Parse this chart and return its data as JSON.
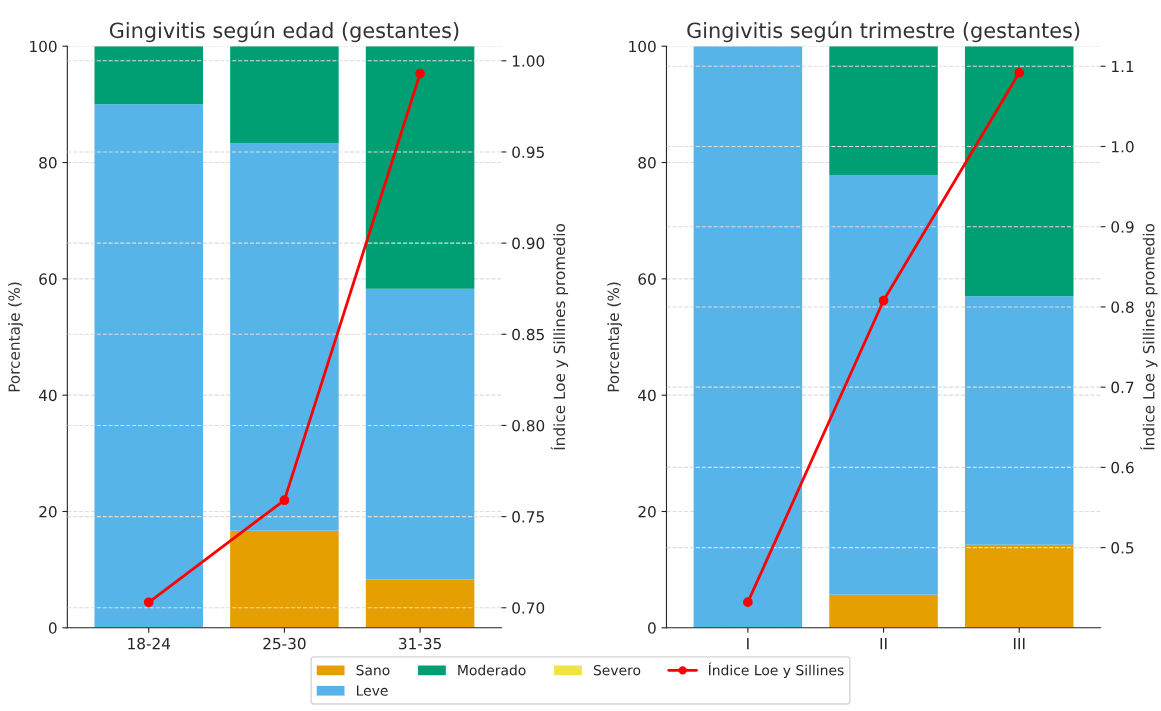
{
  "chart_data": [
    {
      "type": "bar",
      "title": "Gingivitis según edad (gestantes)",
      "ylabel": "Porcentaje (%)",
      "y2label": "Índice Loe y Sillines promedio",
      "categories": [
        "18-24",
        "25-30",
        "31-35"
      ],
      "stacked": true,
      "series": [
        {
          "name": "Sano",
          "color": "#e69f00",
          "values": [
            0,
            16.7,
            8.3
          ]
        },
        {
          "name": "Leve",
          "color": "#56b4e9",
          "values": [
            90,
            66.6,
            50
          ]
        },
        {
          "name": "Moderado",
          "color": "#009e73",
          "values": [
            10,
            16.7,
            41.7
          ]
        },
        {
          "name": "Severo",
          "color": "#f0e442",
          "values": [
            0,
            0,
            0
          ]
        },
        {
          "name": "Índice Loe y Sillines",
          "type": "line",
          "axis": "y2",
          "color": "#ff0000",
          "values": [
            0.703,
            0.759,
            0.993
          ]
        }
      ],
      "ylim": [
        0,
        100
      ],
      "yticks": [
        0,
        20,
        40,
        60,
        80,
        100
      ],
      "y2lim": [
        0.689,
        1.008
      ],
      "y2ticks": [
        {
          "value": 0.7,
          "label": "0.70"
        },
        {
          "value": 0.75,
          "label": "0.75"
        },
        {
          "value": 0.8,
          "label": "0.80"
        },
        {
          "value": 0.85,
          "label": "0.85"
        },
        {
          "value": 0.9,
          "label": "0.90"
        },
        {
          "value": 0.95,
          "label": "0.95"
        },
        {
          "value": 1.0,
          "label": "1.00"
        }
      ],
      "grid": true,
      "legend": "bottom",
      "marker": "circle",
      "line_style": "solid"
    },
    {
      "type": "bar",
      "title": "Gingivitis según trimestre (gestantes)",
      "ylabel": "Porcentaje (%)",
      "y2label": "Índice Loe y Sillines promedio",
      "categories": [
        "I",
        "II",
        "III"
      ],
      "stacked": true,
      "series": [
        {
          "color": "#e69f00",
          "values": [
            0,
            5.7,
            14.3
          ]
        },
        {
          "color": "#56b4e9",
          "values": [
            100,
            72.1,
            42.7
          ]
        },
        {
          "color": "#009e73",
          "values": [
            0,
            22.2,
            43.0
          ]
        },
        {
          "color": "#f0e442",
          "values": [
            0,
            0,
            0
          ]
        },
        {
          "type": "line",
          "axis": "y2",
          "color": "#ff0000",
          "values": [
            0.432,
            0.808,
            1.092
          ]
        }
      ],
      "ylim": [
        0,
        100
      ],
      "yticks": [
        0,
        20,
        40,
        60,
        80,
        100
      ],
      "y2lim": [
        0.4,
        1.125
      ],
      "y2ticks": [
        {
          "value": 0.5,
          "label": "0.5"
        },
        {
          "value": 0.6,
          "label": "0.6"
        },
        {
          "value": 0.7,
          "label": "0.7"
        },
        {
          "value": 0.8,
          "label": "0.8"
        },
        {
          "value": 0.9,
          "label": "0.9"
        },
        {
          "value": 1.0,
          "label": "1.0"
        },
        {
          "value": 1.1,
          "label": "1.1"
        }
      ],
      "grid": true,
      "marker": "circle",
      "line_style": "solid"
    }
  ]
}
